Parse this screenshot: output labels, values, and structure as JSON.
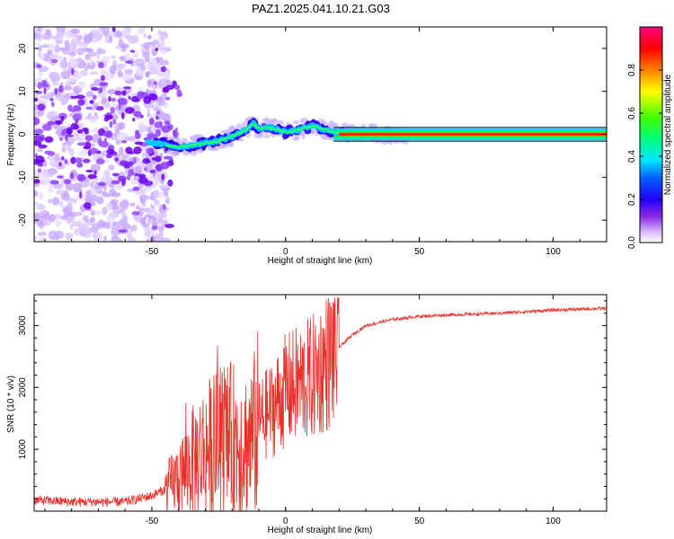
{
  "figure": {
    "title": "PAZ1.2025.041.10.21.G03"
  },
  "chart_data": [
    {
      "type": "heatmap",
      "xlabel": "Height of straight line (km)",
      "ylabel": "Frequency (Hz)",
      "xlim": [
        -94,
        120
      ],
      "ylim": [
        -25,
        25
      ],
      "xticks": [
        -50,
        0,
        50,
        100
      ],
      "yticks": [
        -20,
        -10,
        0,
        10,
        20
      ],
      "colorbar": {
        "label": "Normalized spectral amplitude",
        "range": [
          0,
          1
        ],
        "ticks": [
          0.0,
          0.2,
          0.4,
          0.6,
          0.8
        ],
        "colormap": [
          "#ffffff",
          "#b084f0",
          "#6a00e8",
          "#0000ff",
          "#00e5ff",
          "#00ff00",
          "#ffff00",
          "#ff8000",
          "#ff0000",
          "#ff0080"
        ]
      },
      "ridge": {
        "description": "dominant frequency versus height",
        "x": [
          -94,
          -80,
          -60,
          -50,
          -45,
          -40,
          -35,
          -30,
          -25,
          -20,
          -15,
          -12,
          -10,
          -5,
          0,
          5,
          10,
          15,
          20,
          30,
          50,
          80,
          120
        ],
        "y": [
          2,
          1,
          0,
          -2,
          -2.5,
          -3,
          -2.5,
          -2,
          -1.5,
          -0.5,
          1,
          2.5,
          1.5,
          1.5,
          0.5,
          1,
          2,
          1,
          0.2,
          0.1,
          0,
          0,
          0
        ]
      }
    },
    {
      "type": "line",
      "xlabel": "Height of straight line (km)",
      "ylabel": "SNR (10 * v/v)",
      "xlim": [
        -94,
        120
      ],
      "ylim": [
        0,
        3500
      ],
      "xticks": [
        -50,
        0,
        50,
        100
      ],
      "yticks": [
        1000,
        2000,
        3000
      ],
      "color": "#e8312b",
      "envelope": {
        "x": [
          -94,
          -80,
          -60,
          -50,
          -45,
          -40,
          -35,
          -30,
          -25,
          -20,
          -15,
          -12,
          -10,
          -5,
          0,
          5,
          10,
          15,
          20,
          25,
          30,
          40,
          50,
          60,
          80,
          100,
          120
        ],
        "y": [
          180,
          150,
          150,
          250,
          350,
          550,
          800,
          1000,
          1100,
          1150,
          1100,
          1200,
          1450,
          1650,
          1950,
          2050,
          2150,
          2400,
          2650,
          2850,
          3000,
          3100,
          3150,
          3170,
          3200,
          3250,
          3280
        ]
      }
    }
  ]
}
